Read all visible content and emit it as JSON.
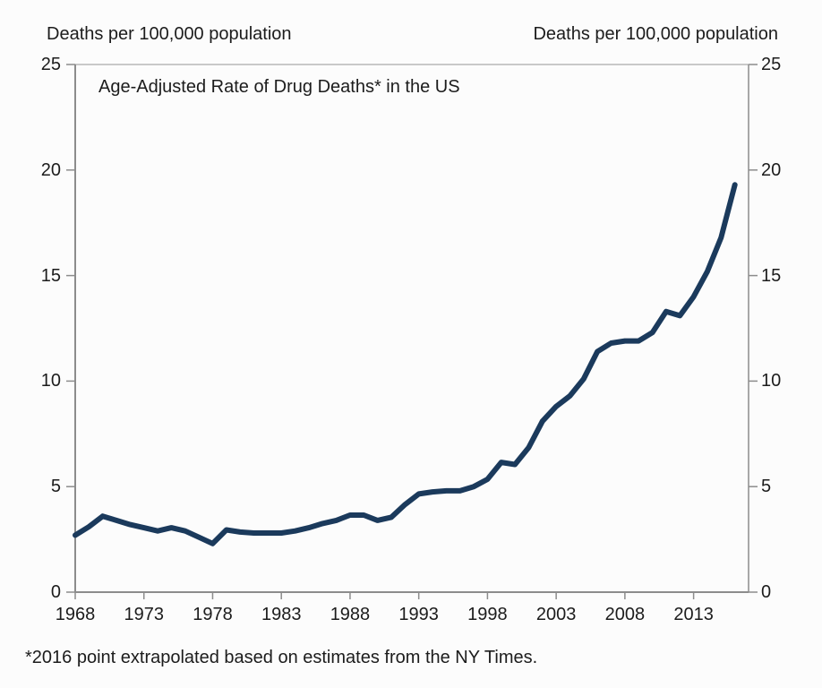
{
  "page": {
    "background_color": "#fcfcfc",
    "text_color": "#1c1c1c"
  },
  "header": {
    "left_axis_title": "Deaths per 100,000 population",
    "right_axis_title": "Deaths per 100,000 population"
  },
  "chart_title": "Age-Adjusted Rate of Drug Deaths* in the US",
  "footnote": "*2016 point extrapolated based on estimates from the NY Times.",
  "colors": {
    "line": "#1b3a5c",
    "axis": "#8c8c8c",
    "top_border": "#b8b8b8"
  },
  "chart_data": {
    "type": "line",
    "title": "Age-Adjusted Rate of Drug Deaths* in the US",
    "ylabel_left": "Deaths per 100,000 population",
    "ylabel_right": "Deaths per 100,000 population",
    "footnote": "*2016 point extrapolated based on estimates from the NY Times.",
    "grid": false,
    "legend_position": "none",
    "xlim": [
      1968,
      2017
    ],
    "ylim": [
      0,
      25
    ],
    "x_ticks": [
      1968,
      1973,
      1978,
      1983,
      1988,
      1993,
      1998,
      2003,
      2008,
      2013
    ],
    "y_ticks": [
      0,
      5,
      10,
      15,
      20,
      25
    ],
    "series": [
      {
        "name": "Age-adjusted rate of drug deaths per 100,000 population",
        "x": [
          1968,
          1969,
          1970,
          1971,
          1972,
          1973,
          1974,
          1975,
          1976,
          1977,
          1978,
          1979,
          1980,
          1981,
          1982,
          1983,
          1984,
          1985,
          1986,
          1987,
          1988,
          1989,
          1990,
          1991,
          1992,
          1993,
          1994,
          1995,
          1996,
          1997,
          1998,
          1999,
          2000,
          2001,
          2002,
          2003,
          2004,
          2005,
          2006,
          2007,
          2008,
          2009,
          2010,
          2011,
          2012,
          2013,
          2014,
          2015,
          2016
        ],
        "values": [
          2.7,
          3.1,
          3.6,
          3.4,
          3.2,
          3.05,
          2.9,
          3.05,
          2.9,
          2.6,
          2.3,
          2.95,
          2.85,
          2.8,
          2.8,
          2.8,
          2.9,
          3.05,
          3.25,
          3.4,
          3.65,
          3.65,
          3.4,
          3.55,
          4.15,
          4.65,
          4.75,
          4.8,
          4.8,
          5.0,
          5.35,
          6.15,
          6.05,
          6.85,
          8.1,
          8.8,
          9.3,
          10.1,
          11.4,
          11.8,
          11.9,
          11.9,
          12.3,
          13.3,
          13.1,
          14.0,
          15.2,
          16.8,
          19.3
        ]
      }
    ]
  }
}
